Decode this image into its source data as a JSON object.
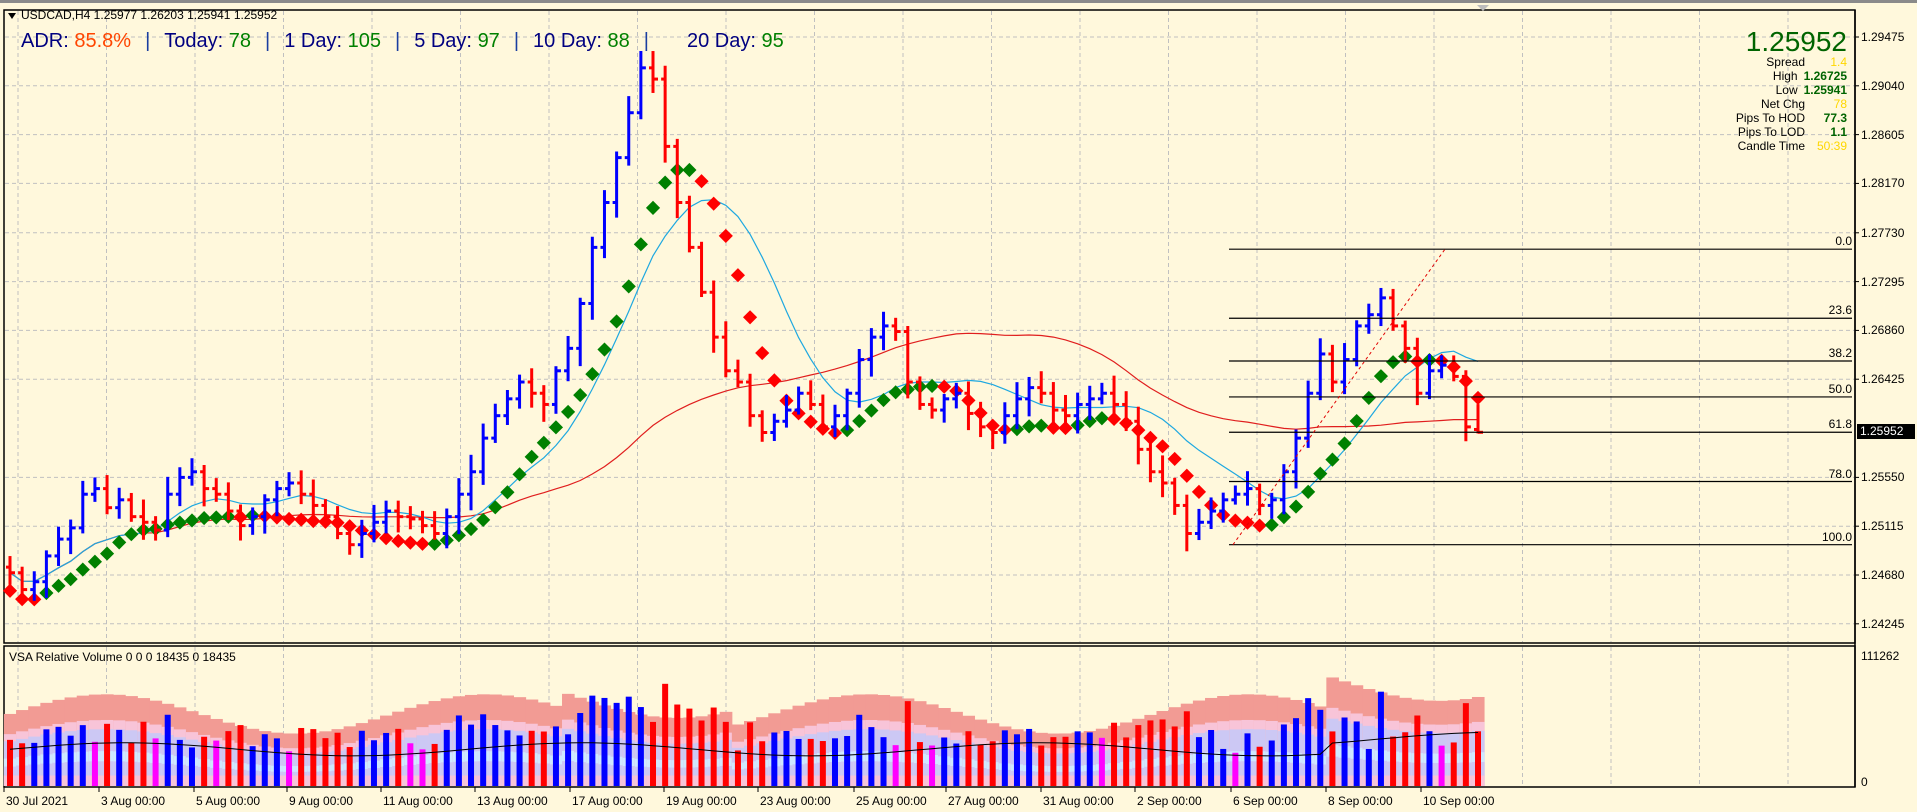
{
  "header": {
    "symbol_line": "USDCAD,H4  1.25977 1.26203 1.25941 1.25952",
    "adr": {
      "adr_label": "ADR:",
      "adr_value": "85.8%",
      "today_label": "Today:",
      "today_value": "78",
      "day1_label": "1 Day:",
      "day1_value": "105",
      "day5_label": "5 Day:",
      "day5_value": "97",
      "day10_label": "10 Day:",
      "day10_value": "88",
      "day20_label": "20 Day:",
      "day20_value": "95",
      "separator": "|"
    }
  },
  "info_panel": {
    "price": "1.25952",
    "rows": [
      {
        "label": "Spread",
        "value": "1.4",
        "color": "gold"
      },
      {
        "label": "High",
        "value": "1.26725",
        "color": "green"
      },
      {
        "label": "Low",
        "value": "1.25941",
        "color": "green"
      },
      {
        "label": "Net Chg",
        "value": "78",
        "color": "gold"
      },
      {
        "label": "Pips To HOD",
        "value": "77.3",
        "color": "green"
      },
      {
        "label": "Pips To LOD",
        "value": "1.1",
        "color": "green"
      },
      {
        "label": "Candle Time",
        "value": "50:39",
        "color": "gold"
      }
    ]
  },
  "price_axis": {
    "labels": [
      "1.29475",
      "1.29040",
      "1.28605",
      "1.28170",
      "1.27730",
      "1.27295",
      "1.26860",
      "1.26425",
      "1.25550",
      "1.25115",
      "1.24680",
      "1.24245"
    ],
    "current_price": "1.25952"
  },
  "time_axis": {
    "labels": [
      "30 Jul 2021",
      "3 Aug 00:00",
      "5 Aug 00:00",
      "9 Aug 00:00",
      "11 Aug 00:00",
      "13 Aug 00:00",
      "17 Aug 00:00",
      "19 Aug 00:00",
      "23 Aug 00:00",
      "25 Aug 00:00",
      "27 Aug 00:00",
      "31 Aug 00:00",
      "2 Sep 00:00",
      "6 Sep 00:00",
      "8 Sep 00:00",
      "10 Sep 00:00"
    ]
  },
  "fibonacci": {
    "levels": [
      {
        "label": "0.0",
        "price": 1.27584
      },
      {
        "label": "23.6",
        "price": 1.26968
      },
      {
        "label": "38.2",
        "price": 1.26587
      },
      {
        "label": "50.0",
        "price": 1.26267
      },
      {
        "label": "61.8",
        "price": 1.25952
      },
      {
        "label": "78.0",
        "price": 1.25513
      },
      {
        "label": "100.0",
        "price": 1.2495
      }
    ]
  },
  "volume_panel": {
    "title": "VSA Relative Volume 0 0 0 18435 0 18435",
    "max_label": "111262",
    "min_label": "0"
  },
  "colors": {
    "background": "#fff8dc",
    "bull_bar": "#0000ff",
    "bear_bar": "#ff0000",
    "trend_up": "#008000",
    "trend_down": "#ff0000",
    "ma_fast": "#1ea8e0",
    "ma_slow": "#e01e1e",
    "grid": "#c0c0c0"
  },
  "chart_data": {
    "type": "ohlc",
    "title": "USDCAD,H4",
    "symbol": "USDCAD",
    "timeframe": "H4",
    "last_ohlc": {
      "open": 1.25977,
      "high": 1.26203,
      "low": 1.25941,
      "close": 1.25952
    },
    "ylim": [
      1.2405,
      1.298
    ],
    "y_ticks": [
      1.29475,
      1.2904,
      1.28605,
      1.2817,
      1.2773,
      1.27295,
      1.2686,
      1.26425,
      1.2555,
      1.25115,
      1.2468,
      1.24245
    ],
    "x_ticks": [
      "30 Jul 2021",
      "3 Aug 00:00",
      "5 Aug 00:00",
      "9 Aug 00:00",
      "11 Aug 00:00",
      "13 Aug 00:00",
      "17 Aug 00:00",
      "19 Aug 00:00",
      "23 Aug 00:00",
      "25 Aug 00:00",
      "27 Aug 00:00",
      "31 Aug 00:00",
      "2 Sep 00:00",
      "6 Sep 00:00",
      "8 Sep 00:00",
      "10 Sep 00:00"
    ],
    "fib_retracement": {
      "high": 1.27584,
      "low": 1.2495,
      "levels": [
        0.0,
        23.6,
        38.2,
        50.0,
        61.8,
        78.0,
        100.0
      ]
    },
    "close_path": [
      1.247,
      1.2455,
      1.2462,
      1.2485,
      1.25,
      1.251,
      1.254,
      1.2545,
      1.2528,
      1.2535,
      1.252,
      1.2515,
      1.2508,
      1.254,
      1.2555,
      1.256,
      1.2545,
      1.254,
      1.2525,
      1.2512,
      1.252,
      1.2535,
      1.2545,
      1.255,
      1.254,
      1.253,
      1.252,
      1.2505,
      1.2495,
      1.2505,
      1.2515,
      1.2525,
      1.252,
      1.2518,
      1.2512,
      1.2505,
      1.252,
      1.254,
      1.256,
      1.259,
      1.261,
      1.2625,
      1.264,
      1.263,
      1.262,
      1.265,
      1.267,
      1.271,
      1.276,
      1.28,
      1.284,
      1.288,
      1.292,
      1.291,
      1.285,
      1.28,
      1.276,
      1.272,
      1.268,
      1.265,
      1.264,
      1.261,
      1.2595,
      1.2605,
      1.2615,
      1.263,
      1.262,
      1.26,
      1.261,
      1.263,
      1.266,
      1.268,
      1.269,
      1.2685,
      1.264,
      1.262,
      1.2615,
      1.2625,
      1.263,
      1.2612,
      1.26,
      1.2595,
      1.261,
      1.2625,
      1.2635,
      1.263,
      1.2615,
      1.261,
      1.262,
      1.2625,
      1.263,
      1.262,
      1.2605,
      1.258,
      1.256,
      1.255,
      1.253,
      1.2505,
      1.2515,
      1.2525,
      1.2535,
      1.254,
      1.2545,
      1.253,
      1.2535,
      1.256,
      1.259,
      1.263,
      1.2665,
      1.264,
      1.266,
      1.269,
      1.27,
      1.2715,
      1.269,
      1.267,
      1.263,
      1.265,
      1.2655,
      1.2645,
      1.26,
      1.2595
    ],
    "volume_series": {
      "max": 111262,
      "min": 0,
      "last": 18435
    }
  }
}
